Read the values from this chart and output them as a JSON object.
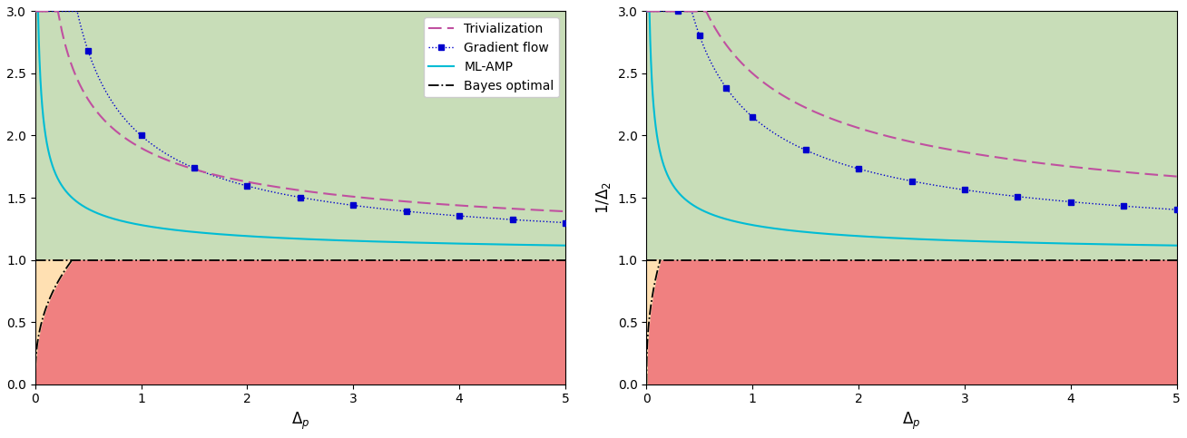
{
  "green_color": "#c8ddb8",
  "red_color": "#f08080",
  "orange_color": "#ffe0b2",
  "triv_color": "#c050a0",
  "gf_color": "#0000cd",
  "amp_color": "#00bcd4",
  "bayes_color": "#000000",
  "xlim": [
    0,
    5
  ],
  "ylim": [
    0.0,
    3.0
  ],
  "xticks": [
    0,
    1,
    2,
    3,
    4,
    5
  ],
  "yticks": [
    0.0,
    0.5,
    1.0,
    1.5,
    2.0,
    2.5,
    3.0
  ],
  "figsize": [
    13.08,
    4.83
  ],
  "dpi": 100,
  "p3": {
    "triv": {
      "base": 1.0,
      "a": 0.9,
      "exp": 0.52
    },
    "gf": {
      "base": 1.0,
      "a": 1.0,
      "exp": 0.75
    },
    "amp": {
      "base": 1.0,
      "a": 0.28,
      "exp": 0.55
    },
    "bayes_xmax": 0.35,
    "bayes_curve_power": 2.5,
    "gf_markers": [
      0.5,
      1.0,
      1.5,
      2.0,
      2.5,
      3.0,
      3.5,
      4.0,
      4.5,
      5.0
    ]
  },
  "p4": {
    "triv": {
      "base": 1.0,
      "a": 1.5,
      "exp": 0.5
    },
    "gf": {
      "base": 1.0,
      "a": 1.15,
      "exp": 0.65
    },
    "amp": {
      "base": 1.0,
      "a": 0.28,
      "exp": 0.55
    },
    "bayes_xmax": 0.13,
    "bayes_curve_power": 2.5,
    "gf_markers": [
      0.3,
      0.5,
      0.75,
      1.0,
      1.5,
      2.0,
      2.5,
      3.0,
      3.5,
      4.0,
      4.5,
      5.0
    ]
  },
  "legend_labels": [
    "Trivialization",
    "Gradient flow",
    "ML-AMP",
    "Bayes optimal"
  ]
}
